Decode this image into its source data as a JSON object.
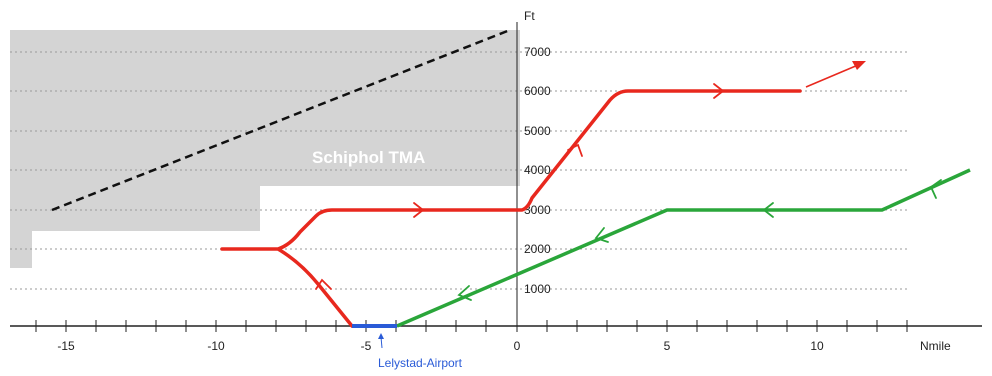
{
  "diagram": {
    "x_unit": "Nmile",
    "y_unit": "Ft",
    "x_ticks": [
      {
        "value": -15,
        "label": "-15"
      },
      {
        "value": -10,
        "label": "-10"
      },
      {
        "value": -5,
        "label": "-5"
      },
      {
        "value": 0,
        "label": "0"
      },
      {
        "value": 5,
        "label": "5"
      },
      {
        "value": 10,
        "label": "10"
      }
    ],
    "y_ticks": [
      {
        "value": 1000,
        "label": "1000"
      },
      {
        "value": 2000,
        "label": "2000"
      },
      {
        "value": 3000,
        "label": "3000"
      },
      {
        "value": 4000,
        "label": "4000"
      },
      {
        "value": 5000,
        "label": "5000"
      },
      {
        "value": 6000,
        "label": "6000"
      },
      {
        "value": 7000,
        "label": "7000"
      }
    ],
    "tma_label": "Schiphol TMA",
    "airport_label": "Lelystad-Airport",
    "colors": {
      "departure": "#e8281e",
      "arrival": "#2aa63a",
      "airport": "#2a5bd7",
      "tma": "#d4d4d4",
      "grid": "#9a9a9a"
    }
  }
}
